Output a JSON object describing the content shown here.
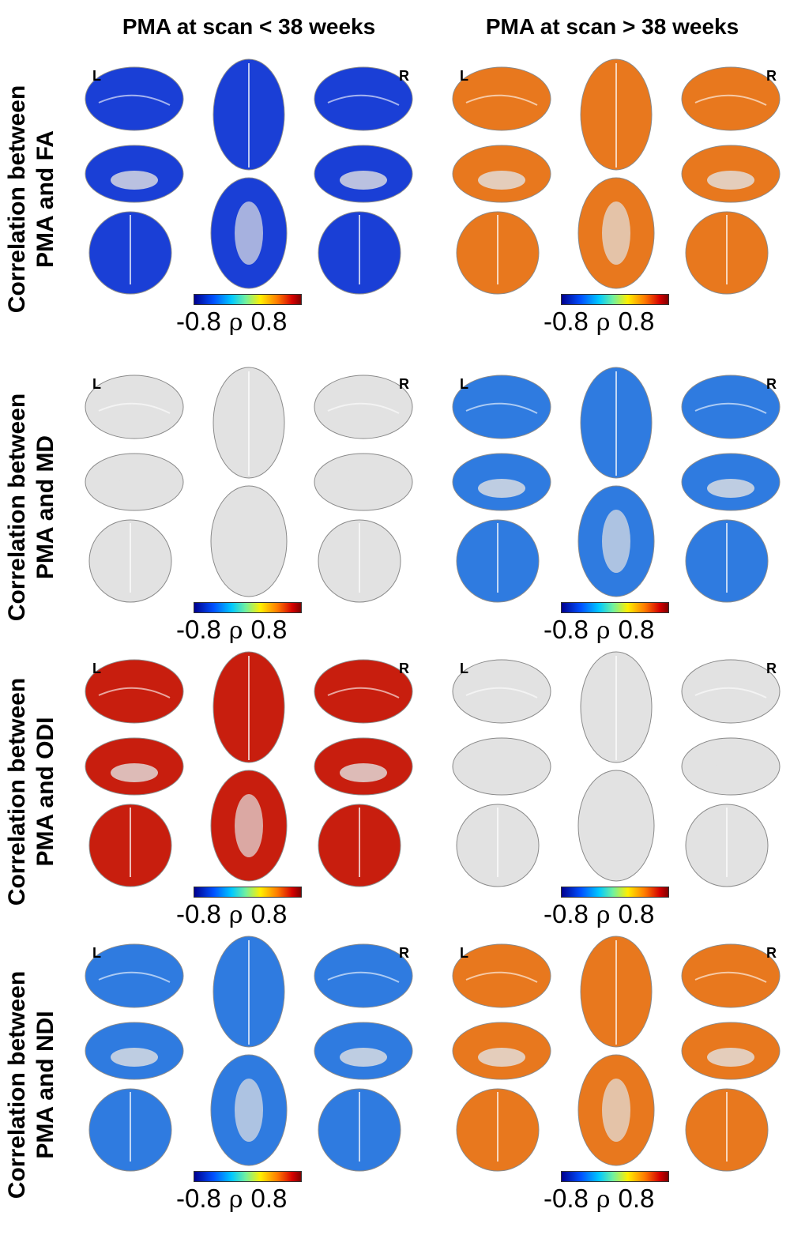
{
  "columns": [
    {
      "title": "PMA at scan < 38 weeks"
    },
    {
      "title": "PMA at scan > 38 weeks"
    }
  ],
  "rows": [
    {
      "line1": "Correlation between",
      "line2": "PMA and FA"
    },
    {
      "line1": "Correlation between",
      "line2": "PMA and MD"
    },
    {
      "line1": "Correlation between",
      "line2": "PMA and ODI"
    },
    {
      "line1": "Correlation between",
      "line2": "PMA and NDI"
    }
  ],
  "hemisphere_labels": {
    "left": "L",
    "right": "R"
  },
  "colorbar": {
    "min": "-0.8",
    "symbol": "ρ",
    "max": "0.8"
  },
  "colors": {
    "cortex_gray": "#e2e2e2",
    "strong_negative": "#1a3fd6",
    "moderate_negative": "#2f7be0",
    "strong_positive": "#c81e0e",
    "moderate_positive": "#e8781e"
  },
  "panel_fill": [
    [
      "strong_negative",
      "moderate_positive"
    ],
    [
      "cortex_gray",
      "moderate_negative"
    ],
    [
      "strong_positive",
      "cortex_gray"
    ],
    [
      "moderate_negative",
      "moderate_positive"
    ]
  ]
}
